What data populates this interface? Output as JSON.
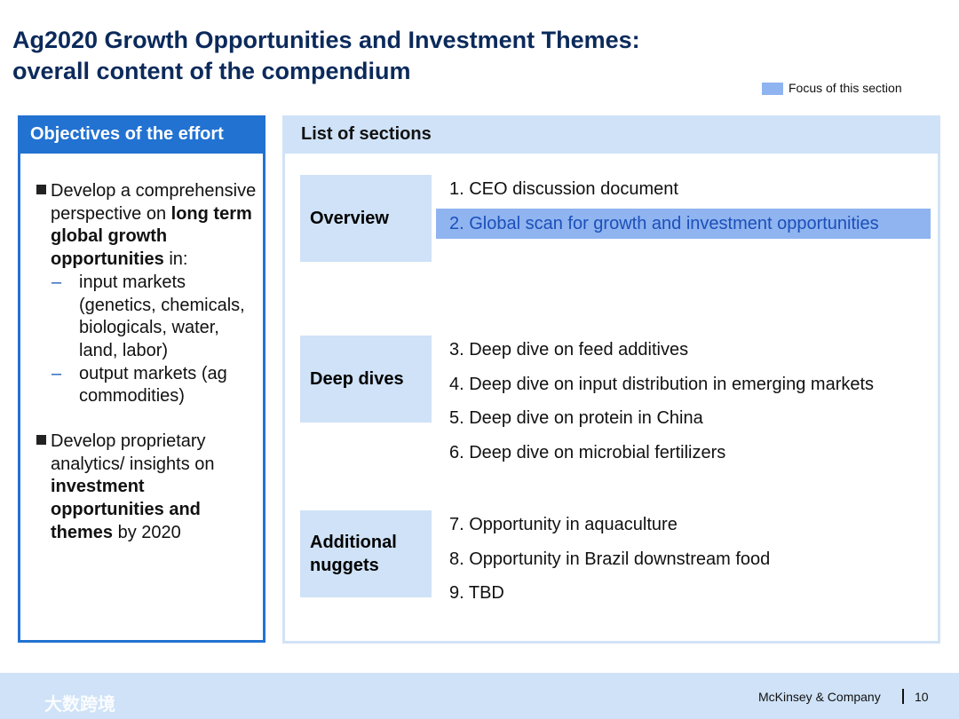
{
  "header": {
    "title_lines": [
      "Ag2020 Growth Opportunities and Investment Themes:",
      "overall content of the compendium"
    ]
  },
  "legend": {
    "label": "Focus of this section",
    "color": "#8fb4f0"
  },
  "objectives": {
    "heading": "Objectives of the effort",
    "bullets": [
      {
        "parts": [
          {
            "text": "Develop a comprehensive perspective on ",
            "bold": false
          },
          {
            "text": "long term global growth opportunities",
            "bold": true
          },
          {
            "text": " in:",
            "bold": false
          }
        ],
        "subitems": [
          "input markets (genetics, chemicals, biologicals, water, land, labor)",
          "output markets (ag commodities)"
        ]
      },
      {
        "parts": [
          {
            "text": "Develop proprietary analytics/ insights on ",
            "bold": false
          },
          {
            "text": "investment opportunities and themes",
            "bold": true
          },
          {
            "text": " by 2020",
            "bold": false
          }
        ],
        "subitems": []
      }
    ]
  },
  "sections": {
    "heading": "List of sections",
    "groups": [
      {
        "label": "Overview",
        "items": [
          {
            "text": "1. CEO discussion document",
            "focus": false
          },
          {
            "text": "2. Global scan for growth and investment opportunities",
            "focus": true
          }
        ]
      },
      {
        "label": "Deep dives",
        "items": [
          {
            "text": "3. Deep dive on feed additives",
            "focus": false
          },
          {
            "text": "4. Deep dive on input distribution in emerging markets",
            "focus": false
          },
          {
            "text": "5. Deep dive on protein in China",
            "focus": false
          },
          {
            "text": "6. Deep dive on microbial fertilizers",
            "focus": false
          }
        ]
      },
      {
        "label": "Additional nuggets",
        "items": [
          {
            "text": "7. Opportunity in aquaculture",
            "focus": false
          },
          {
            "text": "8. Opportunity in Brazil downstream food",
            "focus": false
          },
          {
            "text": "9. TBD",
            "focus": false
          }
        ]
      }
    ]
  },
  "footer": {
    "company": "McKinsey & Company",
    "page": "10",
    "watermark": "大数跨境"
  }
}
